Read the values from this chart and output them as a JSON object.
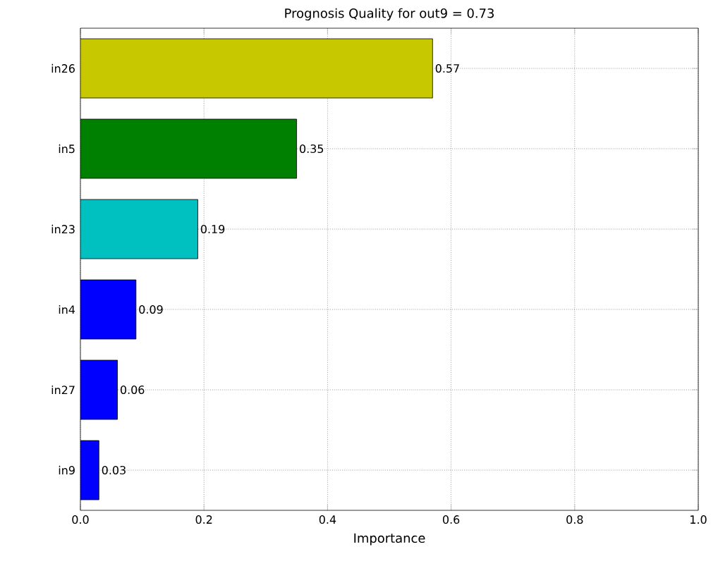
{
  "chart_data": {
    "type": "bar",
    "orientation": "horizontal",
    "title": "Prognosis Quality for out9 = 0.73",
    "xlabel": "Importance",
    "categories": [
      "in26",
      "in5",
      "in23",
      "in4",
      "in27",
      "in9"
    ],
    "values": [
      0.57,
      0.35,
      0.19,
      0.09,
      0.06,
      0.03
    ],
    "colors": [
      "#c8c800",
      "#008000",
      "#00c0c0",
      "#0000ff",
      "#0000ff",
      "#0000ff"
    ],
    "value_labels": [
      "0.57",
      "0.35",
      "0.19",
      "0.09",
      "0.06",
      "0.03"
    ],
    "xlim": [
      0,
      1
    ],
    "xticks": [
      {
        "value": 0,
        "label": "0.0"
      },
      {
        "value": 0.2,
        "label": "0.2"
      },
      {
        "value": 0.4,
        "label": "0.4"
      },
      {
        "value": 0.6,
        "label": "0.6"
      },
      {
        "value": 0.8,
        "label": "0.8"
      },
      {
        "value": 1,
        "label": "1.0"
      }
    ],
    "grid": true
  }
}
